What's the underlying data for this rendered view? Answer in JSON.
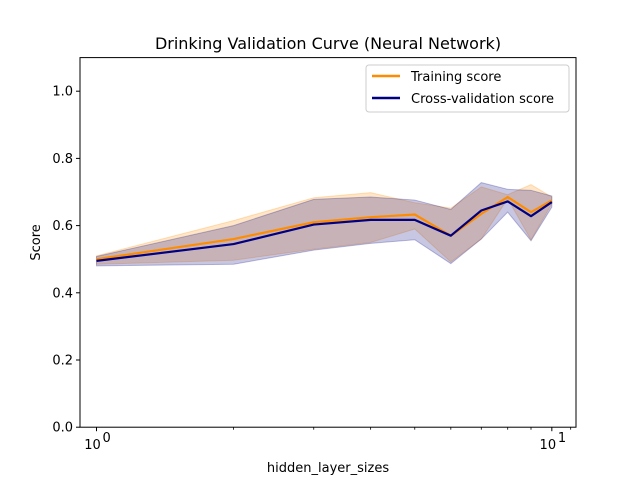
{
  "chart_data": {
    "type": "line",
    "title": "Drinking Validation Curve (Neural Network)",
    "xlabel": "hidden_layer_sizes",
    "ylabel": "Score",
    "xscale": "log",
    "xlim": [
      0.92,
      11.3
    ],
    "ylim": [
      0.0,
      1.1
    ],
    "x": [
      1,
      2,
      3,
      4,
      5,
      6,
      7,
      8,
      9,
      10
    ],
    "x_ticks": [
      {
        "value": 1,
        "label": "10",
        "exp": "0"
      },
      {
        "value": 10,
        "label": "10",
        "exp": "1"
      }
    ],
    "y_ticks": [
      {
        "value": 0.0,
        "label": "0.0"
      },
      {
        "value": 0.2,
        "label": "0.2"
      },
      {
        "value": 0.4,
        "label": "0.4"
      },
      {
        "value": 0.6,
        "label": "0.6"
      },
      {
        "value": 0.8,
        "label": "0.8"
      },
      {
        "value": 1.0,
        "label": "1.0"
      }
    ],
    "grid": false,
    "legend_position": "top-right",
    "series": [
      {
        "name": "Training score",
        "color": "#ff8c00",
        "values": [
          0.5,
          0.56,
          0.61,
          0.625,
          0.633,
          0.57,
          0.635,
          0.685,
          0.64,
          0.675
        ],
        "upper": [
          0.51,
          0.615,
          0.683,
          0.698,
          0.668,
          0.652,
          0.715,
          0.692,
          0.722,
          0.685
        ],
        "lower": [
          0.485,
          0.497,
          0.53,
          0.55,
          0.59,
          0.492,
          0.56,
          0.68,
          0.558,
          0.665
        ]
      },
      {
        "name": "Cross-validation score",
        "color": "#000080",
        "values": [
          0.495,
          0.545,
          0.603,
          0.617,
          0.617,
          0.57,
          0.645,
          0.672,
          0.628,
          0.67
        ],
        "upper": [
          0.508,
          0.6,
          0.678,
          0.685,
          0.676,
          0.648,
          0.728,
          0.708,
          0.705,
          0.688
        ],
        "lower": [
          0.48,
          0.485,
          0.527,
          0.547,
          0.558,
          0.487,
          0.56,
          0.64,
          0.555,
          0.655
        ]
      }
    ]
  }
}
